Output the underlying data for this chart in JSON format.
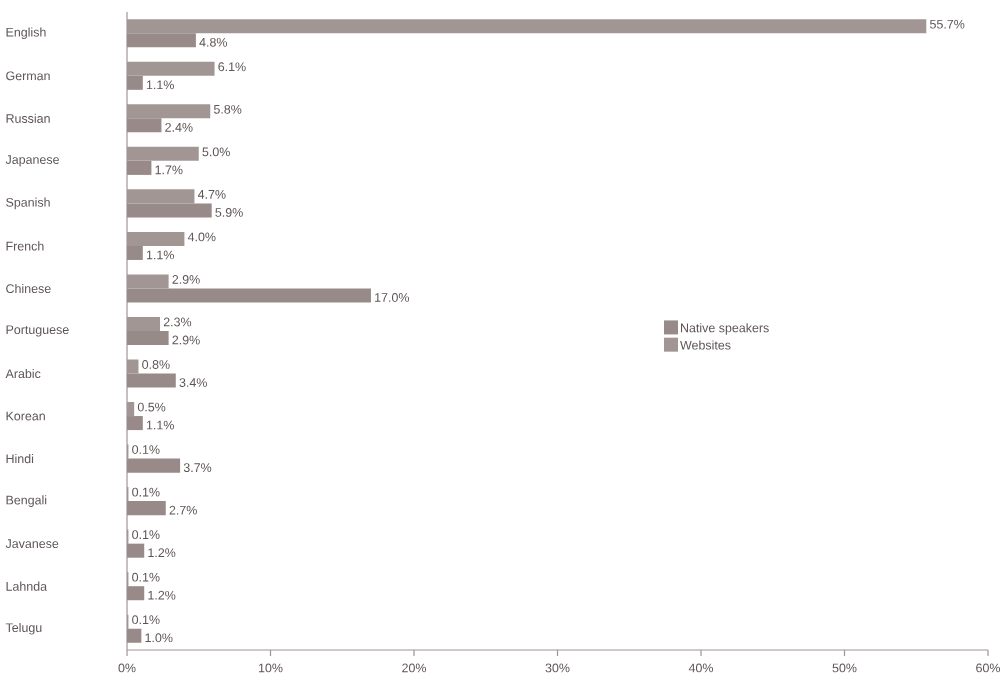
{
  "chart_data": {
    "type": "bar",
    "orientation": "horizontal",
    "categories": [
      "English",
      "German",
      "Russian",
      "Japanese",
      "Spanish",
      "French",
      "Chinese",
      "Portuguese",
      "Arabic",
      "Korean",
      "Hindi",
      "Bengali",
      "Javanese",
      "Lahnda",
      "Telugu"
    ],
    "series": [
      {
        "name": "Native speakers",
        "color": "#978a88",
        "values": [
          4.8,
          1.1,
          2.4,
          1.7,
          5.9,
          1.1,
          17.0,
          2.9,
          3.4,
          1.1,
          3.7,
          2.7,
          1.2,
          1.2,
          1.0
        ],
        "value_labels": [
          "4.8%",
          "1.1%",
          "2.4%",
          "1.7%",
          "5.9%",
          "1.1%",
          "17.0%",
          "2.9%",
          "3.4%",
          "1.1%",
          "3.7%",
          "2.7%",
          "1.2%",
          "1.2%",
          "1.0%"
        ]
      },
      {
        "name": "Websites",
        "color": "#a29694",
        "values": [
          55.7,
          6.1,
          5.8,
          5.0,
          4.7,
          4.0,
          2.9,
          2.3,
          0.8,
          0.5,
          0.1,
          0.1,
          0.1,
          0.1,
          0.1
        ],
        "value_labels": [
          "55.7%",
          "6.1%",
          "5.8%",
          "5.0%",
          "4.7%",
          "4.0%",
          "2.9%",
          "2.3%",
          "0.8%",
          "0.5%",
          "0.1%",
          "0.1%",
          "0.1%",
          "0.1%",
          "0.1%"
        ]
      }
    ],
    "xlim": [
      0,
      60
    ],
    "xticks": [
      {
        "value": 0,
        "label": "0%"
      },
      {
        "value": 10,
        "label": "10%"
      },
      {
        "value": 20,
        "label": "20%"
      },
      {
        "value": 30,
        "label": "30%"
      },
      {
        "value": 40,
        "label": "40%"
      },
      {
        "value": 50,
        "label": "50%"
      },
      {
        "value": 60,
        "label": "60%"
      }
    ],
    "legend": "right",
    "grid": false
  }
}
